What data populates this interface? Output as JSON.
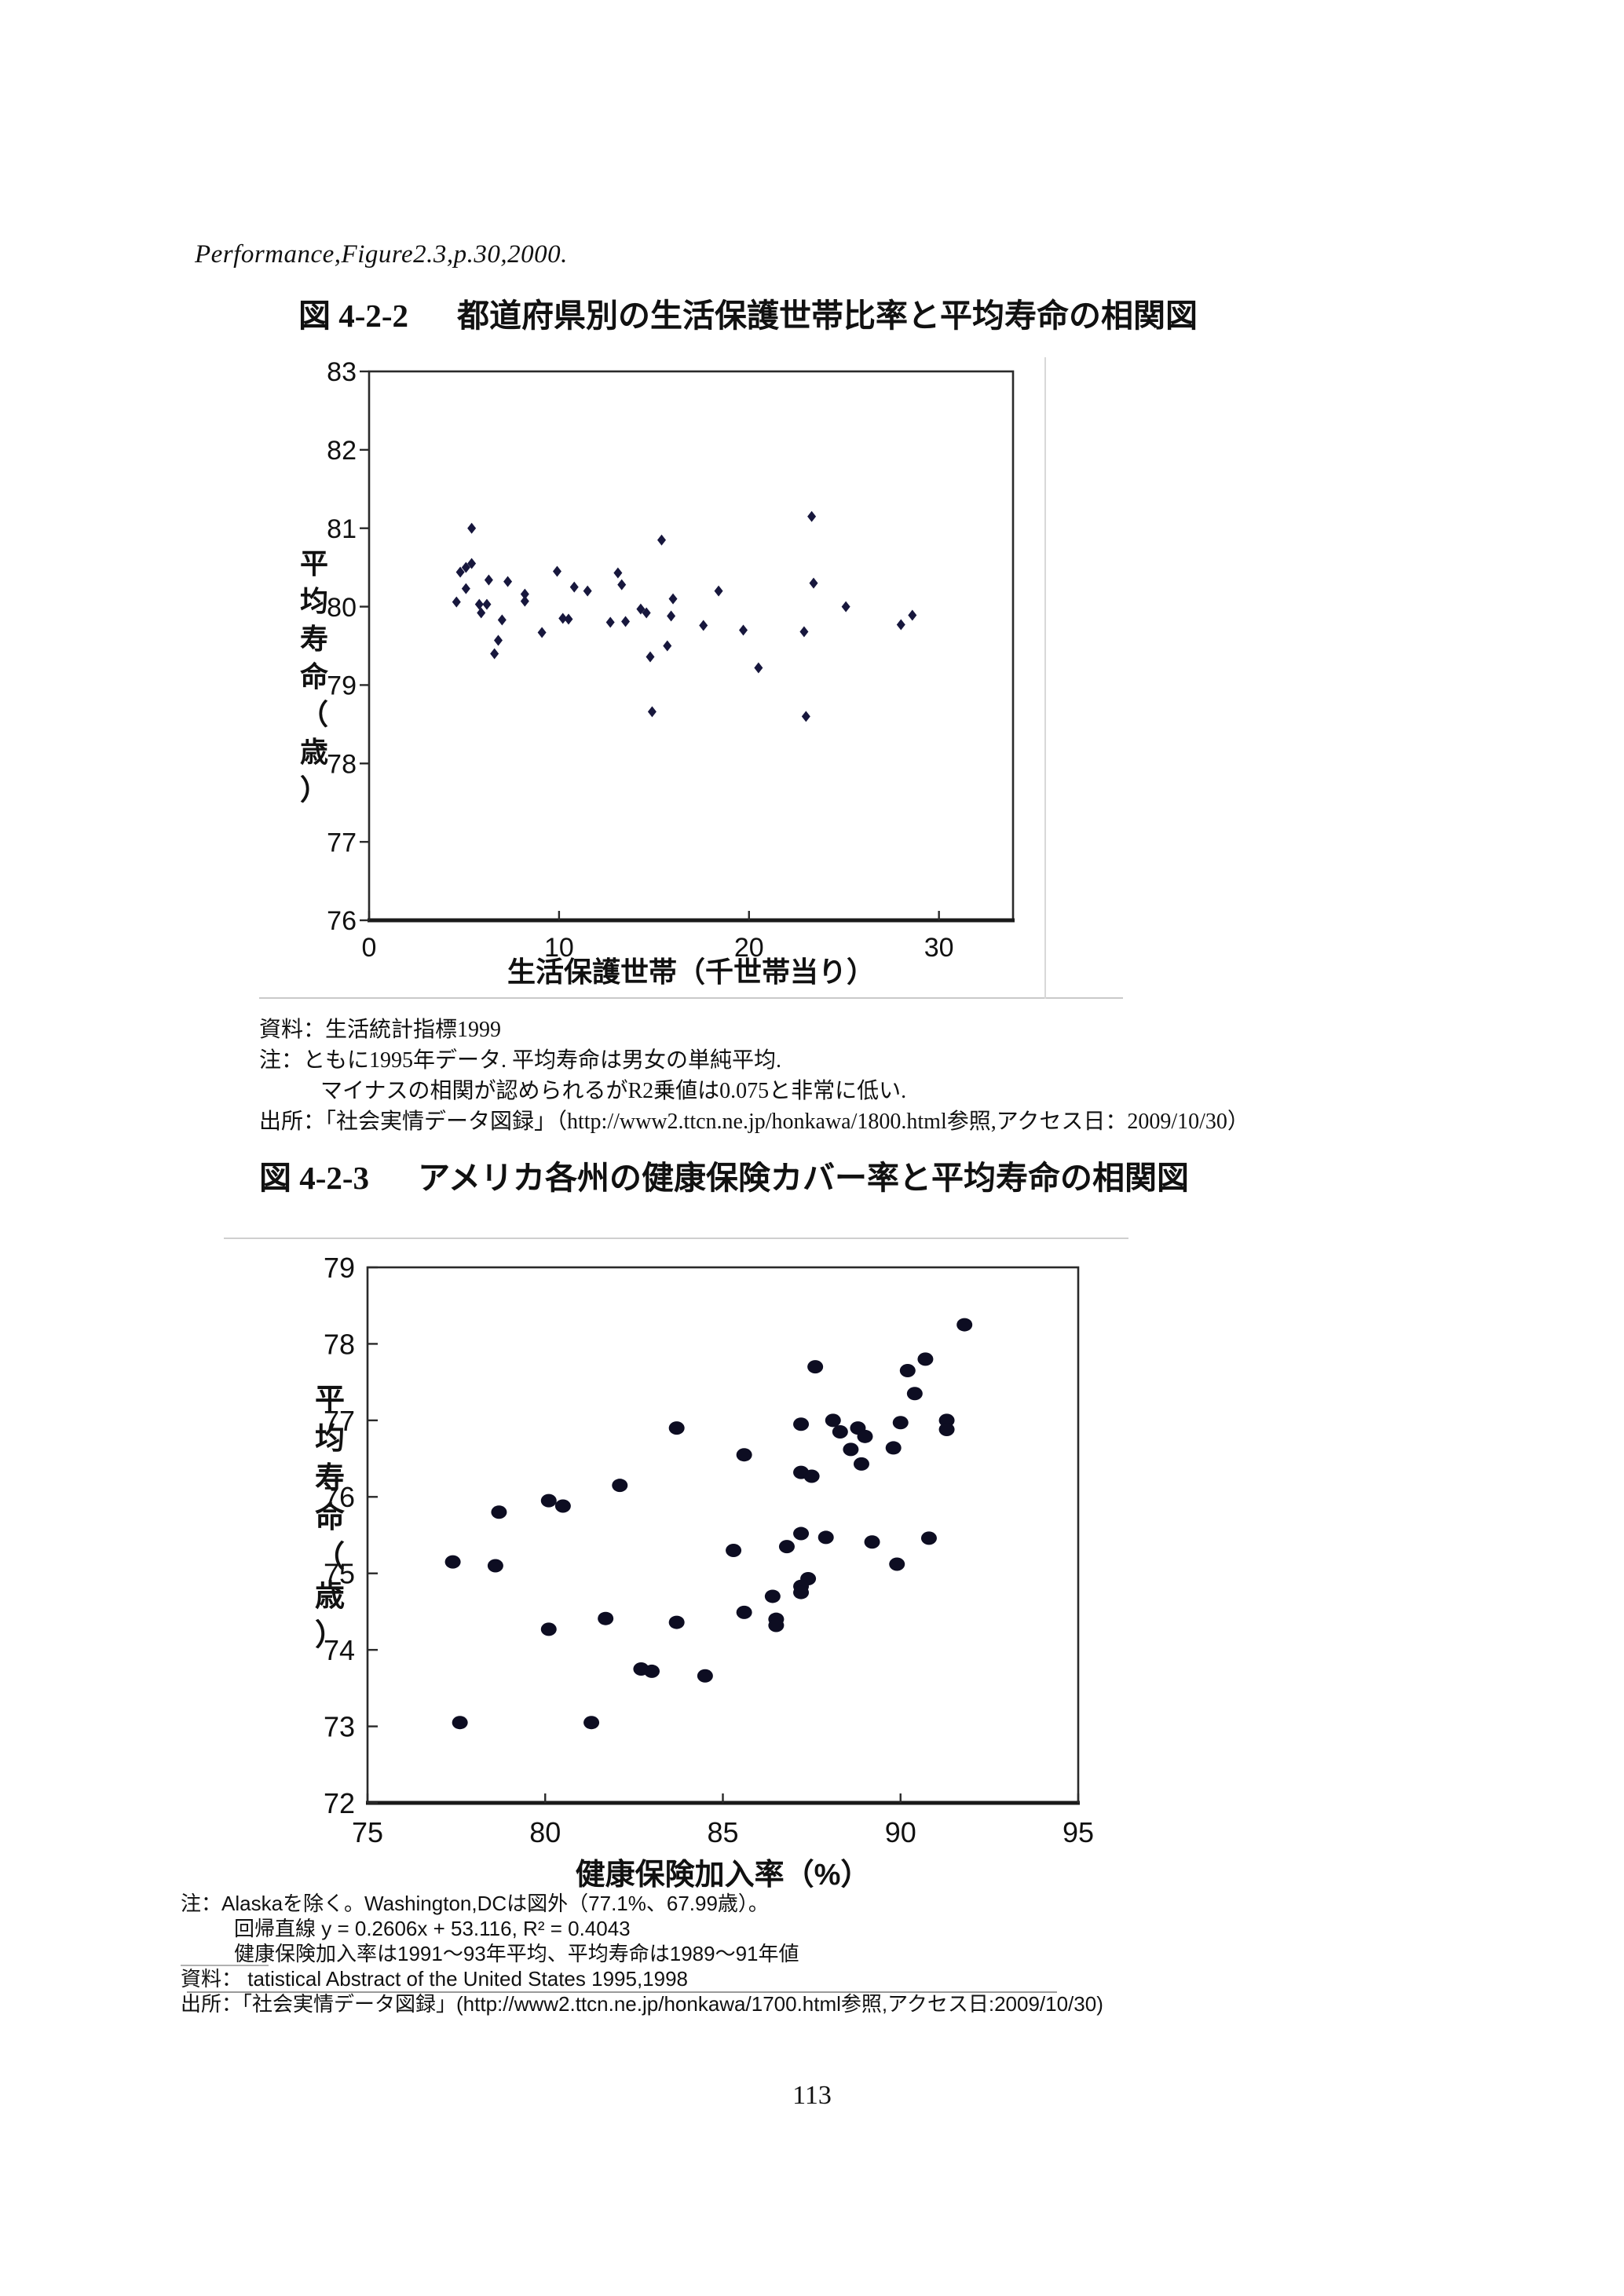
{
  "page": {
    "header_citation": "Performance,Figure2.3,p.30,2000.",
    "page_number": "113"
  },
  "figure1": {
    "label": "図 4-2-2",
    "title": "都道府県別の生活保護世帯比率と平均寿命の相関図",
    "notes": [
      "資料：生活統計指標1999",
      "注：ともに1995年データ. 平均寿命は男女の単純平均.",
      "マイナスの相関が認められるがR2乗値は0.075と非常に低い.",
      "出所：「社会実情データ図録」（http://www2.ttcn.ne.jp/honkawa/1800.html参照,アクセス日：2009/10/30）"
    ]
  },
  "figure2": {
    "label": "図 4-2-3",
    "title": "アメリカ各州の健康保険カバー率と平均寿命の相関図",
    "notes": [
      "注：Alaskaを除く。Washington,DCは図外（77.1%、67.99歳）。",
      "回帰直線 y = 0.2606x + 53.116, R² = 0.4043",
      "健康保険加入率は1991～93年平均、平均寿命は1989～91年値",
      "資料： tatistical Abstract of the United States 1995,1998",
      "出所：「社会実情データ図録」(http://www2.ttcn.ne.jp/honkawa/1700.html参照,アクセス日:2009/10/30)"
    ]
  },
  "chart_data": [
    {
      "type": "scatter",
      "marker": "diamond",
      "color": "#17173d",
      "title": "都道府県別の生活保護世帯比率と平均寿命の相関図",
      "xlabel": "生活保護世帯（千世帯当り）",
      "ylabel": "平均寿命（歳）",
      "xlim": [
        0,
        33.9
      ],
      "ylim": [
        76,
        83
      ],
      "xticks": [
        0,
        10,
        20,
        30
      ],
      "yticks": [
        76,
        77,
        78,
        79,
        80,
        81,
        82,
        83
      ],
      "grid": false,
      "points": [
        [
          5.4,
          81.0
        ],
        [
          23.3,
          81.15
        ],
        [
          15.4,
          80.85
        ],
        [
          5.4,
          80.55
        ],
        [
          5.1,
          80.5
        ],
        [
          4.8,
          80.44
        ],
        [
          6.3,
          80.34
        ],
        [
          7.3,
          80.32
        ],
        [
          5.1,
          80.23
        ],
        [
          9.9,
          80.45
        ],
        [
          10.8,
          80.25
        ],
        [
          11.5,
          80.2
        ],
        [
          8.2,
          80.16
        ],
        [
          8.2,
          80.07
        ],
        [
          4.6,
          80.06
        ],
        [
          5.8,
          80.03
        ],
        [
          6.2,
          80.03
        ],
        [
          5.9,
          79.92
        ],
        [
          7.0,
          79.83
        ],
        [
          10.2,
          79.85
        ],
        [
          10.5,
          79.84
        ],
        [
          9.1,
          79.67
        ],
        [
          13.1,
          80.43
        ],
        [
          13.3,
          80.28
        ],
        [
          16.0,
          80.1
        ],
        [
          14.3,
          79.97
        ],
        [
          14.6,
          79.92
        ],
        [
          12.7,
          79.8
        ],
        [
          13.5,
          79.81
        ],
        [
          15.9,
          79.88
        ],
        [
          6.8,
          79.57
        ],
        [
          6.6,
          79.4
        ],
        [
          15.7,
          79.5
        ],
        [
          14.8,
          79.36
        ],
        [
          18.4,
          80.2
        ],
        [
          23.4,
          80.3
        ],
        [
          25.1,
          80.0
        ],
        [
          17.6,
          79.76
        ],
        [
          19.7,
          79.7
        ],
        [
          22.9,
          79.68
        ],
        [
          28.0,
          79.77
        ],
        [
          28.6,
          79.89
        ],
        [
          20.5,
          79.22
        ],
        [
          14.9,
          78.66
        ],
        [
          23.0,
          78.6
        ]
      ]
    },
    {
      "type": "scatter",
      "marker": "circle",
      "color": "#0d0d22",
      "title": "アメリカ各州の健康保険カバー率と平均寿命の相関図",
      "xlabel": "健康保険加入率（%）",
      "ylabel": "平均寿命（歳）",
      "xlim": [
        75,
        95
      ],
      "ylim": [
        72,
        79
      ],
      "xticks": [
        75,
        80,
        85,
        90,
        95
      ],
      "yticks": [
        72,
        73,
        74,
        75,
        76,
        77,
        78,
        79
      ],
      "grid": false,
      "regression_note": "y = 0.2606x + 53.116, R² = 0.4043",
      "points": [
        [
          91.8,
          78.25
        ],
        [
          90.7,
          77.8
        ],
        [
          90.2,
          77.65
        ],
        [
          87.6,
          77.7
        ],
        [
          90.4,
          77.35
        ],
        [
          88.1,
          77.0
        ],
        [
          87.2,
          76.95
        ],
        [
          90.0,
          76.97
        ],
        [
          91.3,
          77.0
        ],
        [
          91.3,
          76.88
        ],
        [
          88.3,
          76.85
        ],
        [
          88.8,
          76.9
        ],
        [
          89.0,
          76.79
        ],
        [
          83.7,
          76.9
        ],
        [
          88.6,
          76.62
        ],
        [
          89.8,
          76.64
        ],
        [
          85.6,
          76.55
        ],
        [
          88.9,
          76.43
        ],
        [
          87.2,
          76.32
        ],
        [
          87.5,
          76.27
        ],
        [
          82.1,
          76.15
        ],
        [
          80.1,
          75.95
        ],
        [
          80.5,
          75.88
        ],
        [
          78.7,
          75.8
        ],
        [
          85.3,
          75.3
        ],
        [
          86.8,
          75.35
        ],
        [
          87.2,
          75.52
        ],
        [
          87.9,
          75.47
        ],
        [
          89.2,
          75.41
        ],
        [
          90.8,
          75.46
        ],
        [
          89.9,
          75.12
        ],
        [
          87.4,
          74.93
        ],
        [
          87.2,
          74.83
        ],
        [
          87.2,
          74.75
        ],
        [
          86.4,
          74.7
        ],
        [
          85.6,
          74.49
        ],
        [
          86.5,
          74.4
        ],
        [
          86.5,
          74.32
        ],
        [
          77.4,
          75.15
        ],
        [
          78.6,
          75.1
        ],
        [
          80.1,
          74.27
        ],
        [
          81.7,
          74.41
        ],
        [
          83.7,
          74.36
        ],
        [
          82.7,
          73.75
        ],
        [
          83.0,
          73.72
        ],
        [
          84.5,
          73.66
        ],
        [
          77.6,
          73.05
        ],
        [
          81.3,
          73.05
        ]
      ]
    }
  ]
}
